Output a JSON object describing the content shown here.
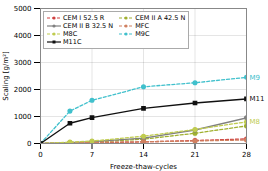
{
  "chart_data": {
    "type": "line",
    "xlabel": "Freeze-thaw-cycles",
    "ylabel": "Scaling [g/m²]",
    "x": [
      0,
      4,
      7,
      14,
      21,
      28
    ],
    "series": [
      {
        "name": "CEM I 52.5 R",
        "color": "#d04040",
        "line_style": "dashed",
        "marker": "circle",
        "values": [
          0,
          15,
          25,
          60,
          110,
          170
        ]
      },
      {
        "name": "CEM II A 42.5 N",
        "color": "#a0b030",
        "line_style": "dashed",
        "marker": "circle",
        "values": [
          0,
          25,
          50,
          160,
          380,
          650
        ]
      },
      {
        "name": "CEM II B 32.5 N",
        "color": "#808080",
        "line_style": "solid",
        "marker": "circle",
        "values": [
          0,
          35,
          70,
          200,
          500,
          950
        ]
      },
      {
        "name": "MFC",
        "color": "#d08060",
        "line_style": "dashed",
        "marker": "circle",
        "values": [
          0,
          20,
          40,
          65,
          95,
          130
        ]
      },
      {
        "name": "M8C",
        "color": "#c0cc50",
        "line_style": "dashed",
        "marker": "circle",
        "values": [
          0,
          50,
          90,
          270,
          520,
          800
        ]
      },
      {
        "name": "M9C",
        "color": "#40c0cc",
        "line_style": "dashed",
        "marker": "circle",
        "values": [
          0,
          1200,
          1600,
          2100,
          2250,
          2450
        ]
      },
      {
        "name": "M11C",
        "color": "#101010",
        "line_style": "solid",
        "marker": "square",
        "values": [
          0,
          750,
          960,
          1300,
          1500,
          1650
        ]
      }
    ],
    "xlim": [
      0,
      28
    ],
    "ylim": [
      0,
      5000
    ],
    "xticks": [
      0,
      7,
      14,
      21,
      28
    ],
    "yticks": [
      0,
      1000,
      2000,
      3000,
      4000,
      5000
    ],
    "grid": true,
    "legend": "upper left",
    "annotations": [
      {
        "text": "M9",
        "x": 28,
        "y": 2450,
        "color": "#40c0cc"
      },
      {
        "text": "M11",
        "x": 28,
        "y": 1650,
        "color": "#101010"
      },
      {
        "text": "M8",
        "x": 28,
        "y": 800,
        "color": "#c0cc50"
      }
    ]
  }
}
